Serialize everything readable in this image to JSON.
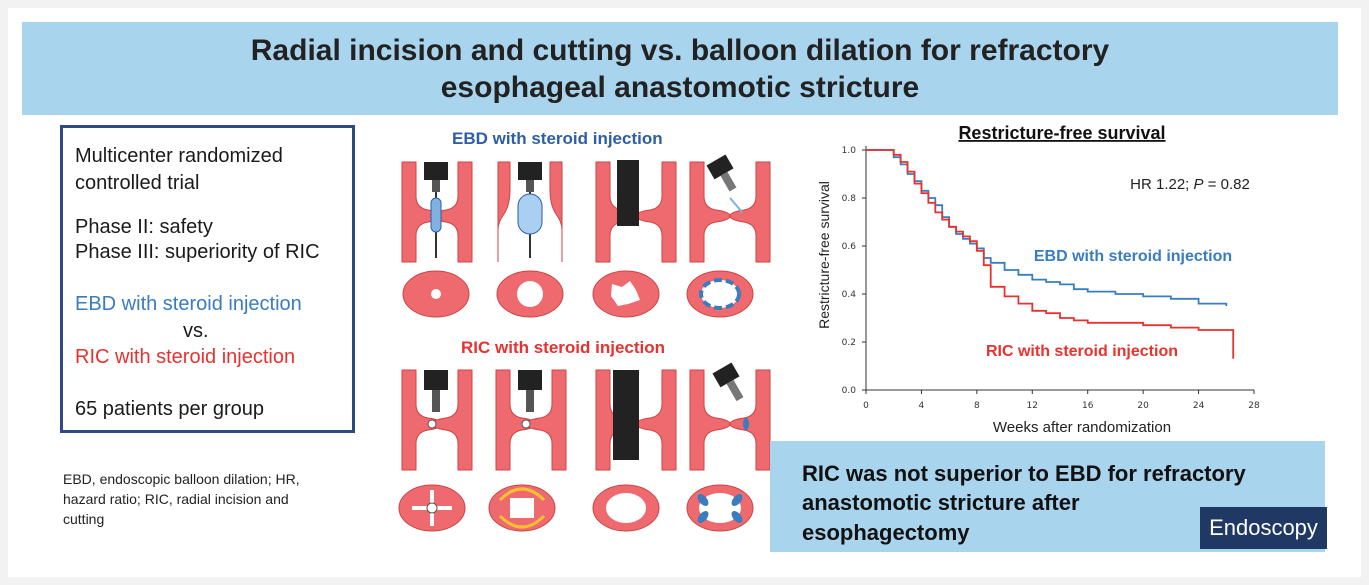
{
  "title": {
    "line1": "Radial incision and cutting vs. balloon dilation for refractory",
    "line2": "esophageal anastomotic stricture"
  },
  "design": {
    "line1": "Multicenter randomized",
    "line2": "controlled trial",
    "phase2": "Phase II: safety",
    "phase3": "Phase III: superiority of RIC",
    "arm1": "EBD with steroid injection",
    "vs": "vs.",
    "arm2": "RIC with steroid injection",
    "patients": "65 patients per group"
  },
  "abbreviations": "EBD, endoscopic balloon dilation; HR, hazard ratio; RIC, radial incision and cutting",
  "procedures": {
    "ebd_label": "EBD with steroid injection",
    "ric_label": "RIC with steroid injection"
  },
  "conclusion": {
    "line1": "RIC was not superior to EBD for refractory",
    "line2": "anastomotic stricture after",
    "line3": "esophagectomy"
  },
  "journal": "Endoscopy",
  "colors": {
    "banner": "#a9d4ee",
    "ebd": "#3a7cc0",
    "ric": "#e8322f",
    "tissue": "#ef6a6e",
    "box_border": "#2d4a82",
    "logo": "#1f3864"
  },
  "chart_data": {
    "type": "line",
    "title": "Restricture-free survival",
    "xlabel": "Weeks after randomization",
    "ylabel": "Restricture-free survival",
    "annotation": "HR 1.22; P = 0.82",
    "xlim": [
      0,
      28
    ],
    "ylim": [
      0,
      1
    ],
    "xticks": [
      0,
      4,
      8,
      12,
      16,
      20,
      24,
      28
    ],
    "yticks": [
      0.0,
      0.2,
      0.4,
      0.6,
      0.8,
      1.0
    ],
    "yticklabels": [
      "0.0",
      "0.2",
      "0.4",
      "0.6",
      "0.8",
      "1.0"
    ],
    "series": [
      {
        "name": "EBD with steroid injection",
        "color": "#3a7cc0",
        "x": [
          0,
          1.5,
          2.0,
          2.5,
          3.0,
          3.5,
          4.0,
          4.5,
          5.0,
          5.5,
          6.0,
          6.5,
          7.0,
          7.5,
          8.0,
          8.5,
          9.0,
          10.0,
          11.0,
          12.0,
          13.0,
          14.0,
          15.0,
          16.0,
          18.0,
          20.0,
          22.0,
          24.0,
          26.0
        ],
        "y": [
          1.0,
          1.0,
          0.97,
          0.94,
          0.9,
          0.87,
          0.83,
          0.8,
          0.77,
          0.72,
          0.68,
          0.65,
          0.63,
          0.61,
          0.59,
          0.55,
          0.53,
          0.5,
          0.48,
          0.46,
          0.45,
          0.44,
          0.42,
          0.41,
          0.4,
          0.39,
          0.38,
          0.36,
          0.35
        ]
      },
      {
        "name": "RIC with steroid injection",
        "color": "#e8322f",
        "x": [
          0,
          1.5,
          2.0,
          2.5,
          3.0,
          3.5,
          4.0,
          4.5,
          5.0,
          5.5,
          6.0,
          6.5,
          7.0,
          7.5,
          8.0,
          8.5,
          9.0,
          10.0,
          11.0,
          12.0,
          13.0,
          14.0,
          15.0,
          16.0,
          18.0,
          20.0,
          22.0,
          24.0,
          26.0,
          26.5
        ],
        "y": [
          1.0,
          1.0,
          0.98,
          0.95,
          0.91,
          0.86,
          0.82,
          0.78,
          0.74,
          0.71,
          0.68,
          0.66,
          0.64,
          0.62,
          0.58,
          0.52,
          0.43,
          0.39,
          0.36,
          0.33,
          0.32,
          0.3,
          0.29,
          0.28,
          0.28,
          0.27,
          0.26,
          0.25,
          0.25,
          0.13
        ]
      }
    ],
    "series_labels": [
      "EBD with steroid injection",
      "RIC with steroid injection"
    ]
  }
}
